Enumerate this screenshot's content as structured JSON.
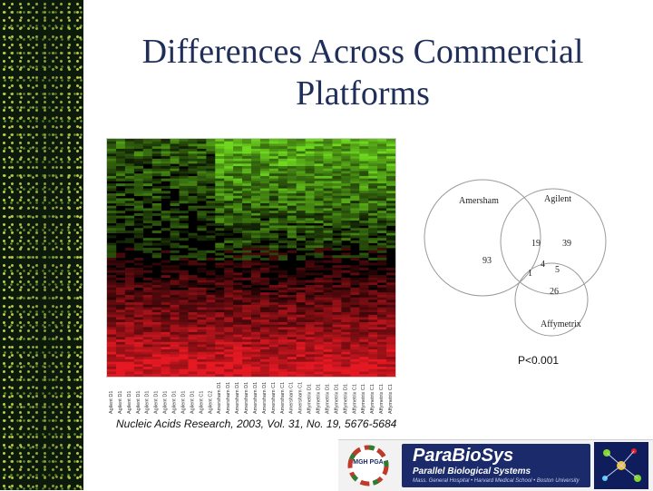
{
  "slide": {
    "title": "Differences Across Commercial Platforms",
    "citation": "Nucleic Acids Research, 2003, Vol. 31, No. 19, 5676-5684",
    "p_value": "P<0.001"
  },
  "heatmap": {
    "sample_labels": [
      "Agilent D1",
      "Agilent D1",
      "Agilent D1",
      "Agilent D1",
      "Agilent D1",
      "Agilent D1",
      "Agilent D1",
      "Agilent D1",
      "Agilent D1",
      "Agilent D1",
      "Agilent C1",
      "Agilent C2",
      "Amersham D1",
      "Amersham D1",
      "Amersham D1",
      "Amersham D1",
      "Amersham D1",
      "Amersham D1",
      "Amersham C1",
      "Amersham C1",
      "Amersham C1",
      "Amersham C1",
      "Affymetrix D1",
      "Affymetrix D1",
      "Affymetrix D1",
      "Affymetrix D1",
      "Affymetrix D1",
      "Affymetrix C1",
      "Affymetrix C1",
      "Affymetrix C1",
      "Affymetrix C1",
      "Affymetrix C1"
    ],
    "colors": {
      "up": "#e0202a",
      "down": "#7fd82a",
      "neutral": "#000000"
    }
  },
  "venn": {
    "sets": [
      "Amersham",
      "Agilent",
      "Affymetrix"
    ],
    "regions": {
      "amersham_only": "93",
      "amersham_agilent": "19",
      "agilent_only": "39",
      "all_three": "4",
      "amersham_affymetrix": "1",
      "agilent_affymetrix": "5",
      "affymetrix_only": "26"
    }
  },
  "logos": {
    "mgh_pga": "MGH PGA",
    "parabiosys_name": "ParaBioSys",
    "parabiosys_tagline": "Parallel Biological Systems",
    "parabiosys_affiliations": "Mass. General Hospital • Harvard Medical School • Boston University"
  },
  "theme": {
    "title_color": "#1f2f5a",
    "logo_navy": "#1a2a6a"
  }
}
